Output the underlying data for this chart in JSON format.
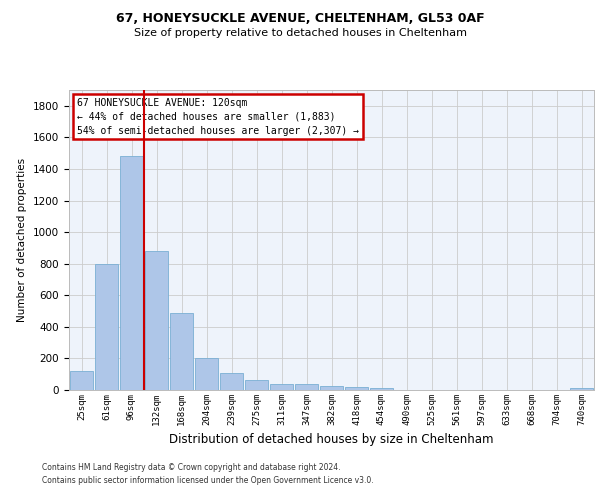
{
  "title1": "67, HONEYSUCKLE AVENUE, CHELTENHAM, GL53 0AF",
  "title2": "Size of property relative to detached houses in Cheltenham",
  "xlabel": "Distribution of detached houses by size in Cheltenham",
  "ylabel": "Number of detached properties",
  "categories": [
    "25sqm",
    "61sqm",
    "96sqm",
    "132sqm",
    "168sqm",
    "204sqm",
    "239sqm",
    "275sqm",
    "311sqm",
    "347sqm",
    "382sqm",
    "418sqm",
    "454sqm",
    "490sqm",
    "525sqm",
    "561sqm",
    "597sqm",
    "633sqm",
    "668sqm",
    "704sqm",
    "740sqm"
  ],
  "values": [
    120,
    800,
    1480,
    880,
    490,
    205,
    105,
    65,
    40,
    35,
    25,
    20,
    10,
    0,
    0,
    0,
    0,
    0,
    0,
    0,
    10
  ],
  "bar_color": "#aec6e8",
  "bar_edge_color": "#7aafd4",
  "grid_color": "#cccccc",
  "annotation_line1": "67 HONEYSUCKLE AVENUE: 120sqm",
  "annotation_line2": "← 44% of detached houses are smaller (1,883)",
  "annotation_line3": "54% of semi-detached houses are larger (2,307) →",
  "annotation_box_color": "#ffffff",
  "annotation_box_edge_color": "#cc0000",
  "property_line_color": "#cc0000",
  "property_line_x": 2.5,
  "ylim": [
    0,
    1900
  ],
  "yticks": [
    0,
    200,
    400,
    600,
    800,
    1000,
    1200,
    1400,
    1600,
    1800
  ],
  "footer1": "Contains HM Land Registry data © Crown copyright and database right 2024.",
  "footer2": "Contains public sector information licensed under the Open Government Licence v3.0.",
  "background_color": "#eef3fb"
}
